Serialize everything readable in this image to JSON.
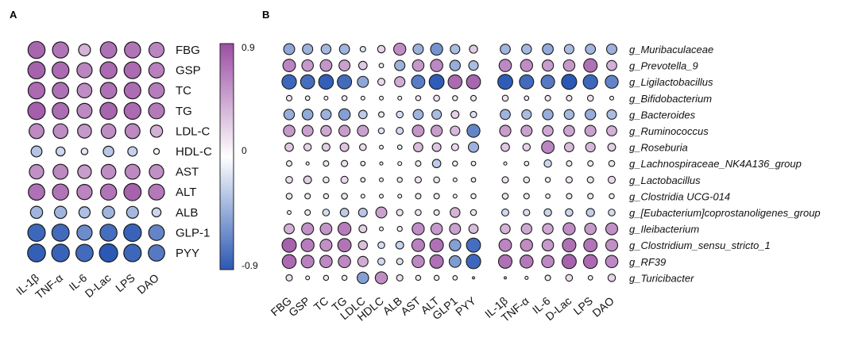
{
  "panels": {
    "a": "A",
    "b": "B"
  },
  "colorbar": {
    "max_label": "0.9",
    "mid_label": "0",
    "min_label": "-0.9",
    "max": 0.9,
    "min": -0.9
  },
  "chart_data": [
    {
      "type": "heatmap",
      "title": "A",
      "style": "bubble correlation matrix",
      "columns": [
        "IL-1β",
        "TNF-α",
        "IL-6",
        "D-Lac",
        "LPS",
        "DAO"
      ],
      "rows": [
        "FBG",
        "GSP",
        "TC",
        "TG",
        "LDL-C",
        "HDL-C",
        "AST",
        "ALT",
        "ALB",
        "GLP-1",
        "PYY"
      ],
      "values": [
        [
          0.78,
          0.7,
          0.38,
          0.72,
          0.7,
          0.62
        ],
        [
          0.8,
          0.76,
          0.62,
          0.76,
          0.76,
          0.64
        ],
        [
          0.76,
          0.72,
          0.58,
          0.72,
          0.74,
          0.66
        ],
        [
          0.82,
          0.74,
          0.6,
          0.78,
          0.76,
          0.68
        ],
        [
          0.6,
          0.58,
          0.52,
          0.58,
          0.6,
          0.4
        ],
        [
          -0.32,
          -0.22,
          -0.12,
          -0.3,
          -0.24,
          -0.04
        ],
        [
          0.56,
          0.6,
          0.5,
          0.58,
          0.6,
          0.56
        ],
        [
          0.72,
          0.7,
          0.62,
          0.7,
          0.8,
          0.68
        ],
        [
          -0.4,
          -0.4,
          -0.34,
          -0.4,
          -0.38,
          -0.22
        ],
        [
          -0.82,
          -0.8,
          -0.62,
          -0.78,
          -0.84,
          -0.66
        ],
        [
          -0.86,
          -0.84,
          -0.8,
          -0.9,
          -0.82,
          -0.72
        ]
      ]
    },
    {
      "type": "heatmap",
      "title": "B",
      "style": "bubble correlation matrix",
      "subpanels": [
        {
          "columns": [
            "FBG",
            "GSP",
            "TC",
            "TG",
            "LDLC",
            "HDLC",
            "ALB",
            "AST",
            "ALT",
            "GLP1",
            "PYY"
          ],
          "rows": [
            "g_Muribaculaceae",
            "g_Prevotella_9",
            "g_Ligilactobacillus",
            "g_Bifidobacterium",
            "g_Bacteroides",
            "g_Ruminococcus",
            "g_Roseburia",
            "g_Lachnospiraceae_NK4A136_group",
            "g_Lactobacillus",
            "g_Clostridia UCG-014",
            "g_[Eubacterium]coprostanoligenes_group",
            "g_Ileibacterium",
            "g_Clostridium_sensu_stricto_1",
            "g_RF39",
            "g_Turicibacter"
          ],
          "values": [
            [
              -0.48,
              -0.42,
              -0.38,
              -0.4,
              -0.12,
              0.22,
              0.58,
              -0.42,
              -0.58,
              -0.36,
              0.26
            ],
            [
              0.62,
              0.52,
              0.54,
              0.48,
              0.28,
              -0.08,
              -0.42,
              0.52,
              0.6,
              -0.44,
              -0.36
            ],
            [
              -0.82,
              -0.78,
              -0.86,
              -0.8,
              -0.48,
              0.2,
              0.42,
              -0.7,
              -0.88,
              0.76,
              0.78
            ],
            [
              0.12,
              0.08,
              0.06,
              0.1,
              0.06,
              0.06,
              0.06,
              0.1,
              0.14,
              0.1,
              0.12
            ],
            [
              -0.44,
              -0.46,
              -0.42,
              -0.52,
              -0.28,
              0.12,
              -0.18,
              -0.4,
              -0.36,
              0.24,
              -0.16
            ],
            [
              0.52,
              0.48,
              0.44,
              0.5,
              0.48,
              -0.14,
              -0.2,
              0.54,
              0.5,
              0.36,
              -0.66
            ],
            [
              0.28,
              0.22,
              0.24,
              0.3,
              0.18,
              -0.06,
              -0.08,
              0.34,
              0.3,
              0.2,
              -0.42
            ],
            [
              0.12,
              0.04,
              0.12,
              0.16,
              0.08,
              0.04,
              -0.06,
              0.12,
              -0.28,
              0.1,
              0.08
            ],
            [
              0.18,
              0.24,
              0.14,
              0.2,
              0.08,
              0.06,
              0.1,
              0.16,
              0.14,
              -0.06,
              -0.08
            ],
            [
              0.14,
              0.12,
              0.1,
              0.14,
              0.06,
              0.06,
              0.06,
              0.12,
              0.12,
              0.06,
              0.1
            ],
            [
              0.06,
              0.12,
              -0.18,
              -0.28,
              -0.3,
              0.48,
              0.16,
              0.14,
              0.12,
              0.38,
              0.14
            ],
            [
              0.4,
              0.56,
              0.54,
              0.66,
              0.24,
              0.06,
              0.1,
              0.58,
              0.52,
              0.48,
              0.34
            ],
            [
              0.8,
              0.66,
              0.56,
              0.7,
              0.32,
              -0.18,
              -0.24,
              0.64,
              0.72,
              -0.52,
              -0.78
            ],
            [
              0.76,
              0.64,
              0.6,
              0.6,
              0.42,
              -0.2,
              -0.16,
              0.6,
              0.72,
              -0.54,
              -0.82
            ],
            [
              0.16,
              0.06,
              0.1,
              0.1,
              -0.52,
              0.58,
              0.16,
              0.1,
              0.1,
              0.08,
              0.02
            ]
          ]
        },
        {
          "columns": [
            "IL-1β",
            "TNF-α",
            "IL-6",
            "D-Lac",
            "LPS",
            "DAO"
          ],
          "rows": [
            "g_Muribaculaceae",
            "g_Prevotella_9",
            "g_Ligilactobacillus",
            "g_Bifidobacterium",
            "g_Bacteroides",
            "g_Ruminococcus",
            "g_Roseburia",
            "g_Lachnospiraceae_NK4A136_group",
            "g_Lactobacillus",
            "g_Clostridia UCG-014",
            "g_[Eubacterium]coprostanoligenes_group",
            "g_Ileibacterium",
            "g_Clostridium_sensu_stricto_1",
            "g_RF39",
            "g_Turicibacter"
          ],
          "values": [
            [
              -0.4,
              -0.38,
              -0.46,
              -0.36,
              -0.4,
              -0.42
            ],
            [
              0.6,
              0.58,
              0.5,
              0.52,
              0.72,
              0.4
            ],
            [
              -0.88,
              -0.8,
              -0.72,
              -0.9,
              -0.82,
              -0.66
            ],
            [
              0.14,
              0.08,
              0.12,
              0.12,
              0.14,
              0.06
            ],
            [
              -0.4,
              -0.36,
              -0.44,
              -0.38,
              -0.44,
              -0.36
            ],
            [
              0.5,
              0.48,
              0.44,
              0.46,
              0.48,
              0.4
            ],
            [
              0.28,
              0.22,
              0.62,
              0.34,
              0.36,
              0.24
            ],
            [
              0.04,
              0.08,
              -0.22,
              0.12,
              0.12,
              0.14
            ],
            [
              0.16,
              0.14,
              0.1,
              0.16,
              0.16,
              0.2
            ],
            [
              0.14,
              0.12,
              0.08,
              0.12,
              0.12,
              0.1
            ],
            [
              -0.2,
              -0.16,
              -0.22,
              -0.22,
              -0.26,
              -0.18
            ],
            [
              0.38,
              0.44,
              0.44,
              0.58,
              0.52,
              0.56
            ],
            [
              0.62,
              0.58,
              0.52,
              0.72,
              0.7,
              0.56
            ],
            [
              0.72,
              0.68,
              0.6,
              0.8,
              0.76,
              0.6
            ],
            [
              0.02,
              0.04,
              0.12,
              0.18,
              0.08,
              0.22
            ]
          ]
        }
      ]
    }
  ]
}
